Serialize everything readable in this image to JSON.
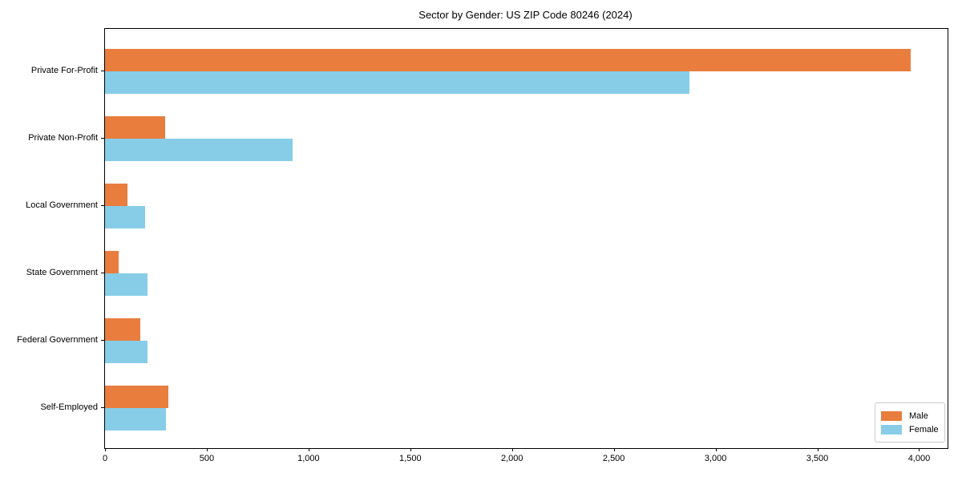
{
  "title": "Sector by Gender: US ZIP Code 80246 (2024)",
  "chart_data": {
    "type": "bar",
    "orientation": "horizontal",
    "title": "Sector by Gender: US ZIP Code 80246 (2024)",
    "categories": [
      "Private For-Profit",
      "Private Non-Profit",
      "Local Government",
      "State Government",
      "Federal Government",
      "Self-Employed"
    ],
    "series": [
      {
        "name": "Male",
        "color": "#e87d3e",
        "values": [
          3960,
          295,
          110,
          65,
          175,
          310
        ]
      },
      {
        "name": "Female",
        "color": "#87cde8",
        "values": [
          2870,
          920,
          195,
          210,
          210,
          300
        ]
      }
    ],
    "xlabel": "",
    "ylabel": "",
    "xlim": [
      0,
      4140
    ],
    "x_ticks": [
      0,
      500,
      1000,
      1500,
      2000,
      2500,
      3000,
      3500,
      4000
    ],
    "x_tick_labels": [
      "0",
      "500",
      "1,000",
      "1,500",
      "2,000",
      "2,500",
      "3,000",
      "3,500",
      "4,000"
    ],
    "grid": false,
    "legend_position": "lower right",
    "colors": {
      "frame": "#000000",
      "text": "#000000",
      "legend_border": "#cccccc",
      "background": "#ffffff"
    }
  }
}
